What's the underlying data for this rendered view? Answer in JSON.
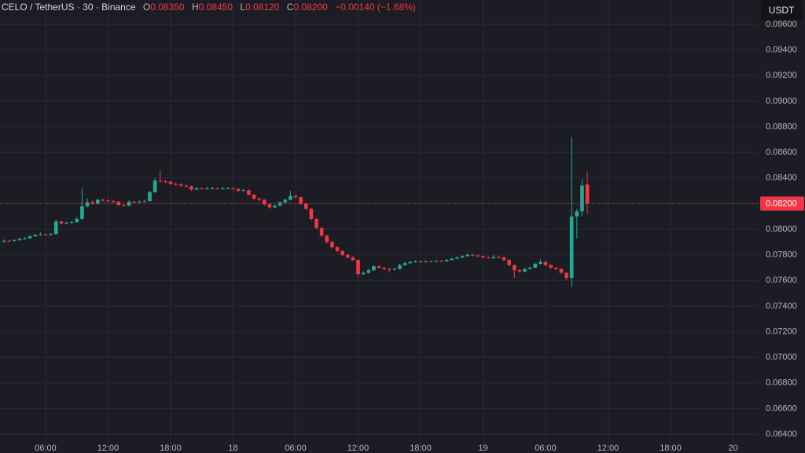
{
  "header": {
    "symbol": "CELO / TetherUS · 30 · Binance",
    "ohlc": [
      {
        "label": "O",
        "value": "0.08350"
      },
      {
        "label": "H",
        "value": "0.08450"
      },
      {
        "label": "L",
        "value": "0.08120"
      },
      {
        "label": "C",
        "value": "0.08200"
      }
    ],
    "change": "−0.00140 (−1.68%)"
  },
  "currency_button": "USDT",
  "chart_data": {
    "type": "candlestick",
    "up_color": "#22ab94",
    "down_color": "#f23645",
    "grid": true,
    "x": [
      2,
      2.5,
      3,
      3.5,
      4,
      4.5,
      5,
      5.5,
      6,
      6.5,
      7,
      7.5,
      8,
      8.5,
      9,
      9.5,
      10,
      10.5,
      11,
      11.5,
      12,
      12.5,
      13,
      13.5,
      14,
      14.5,
      15,
      15.5,
      16,
      16.5,
      17,
      17.5,
      18,
      18.5,
      19,
      19.5,
      20,
      20.5,
      21,
      21.5,
      22,
      22.5,
      23,
      23.5,
      24,
      24.5,
      25,
      25.5,
      26,
      26.5,
      27,
      27.5,
      28,
      28.5,
      29,
      29.5,
      30,
      30.5,
      31,
      31.5,
      32,
      32.5,
      33,
      33.5,
      34,
      34.5,
      35,
      35.5,
      36,
      36.5,
      37,
      37.5,
      38,
      38.5,
      39,
      39.5,
      40,
      40.5,
      41,
      41.5,
      42,
      42.5,
      43,
      43.5,
      44,
      44.5,
      45,
      45.5,
      46,
      46.5,
      47,
      47.5,
      48,
      48.5,
      49,
      49.5,
      50,
      50.5,
      51,
      51.5,
      52,
      52.5,
      53,
      53.5,
      54,
      54.5,
      55,
      55.5,
      56,
      56.5,
      57,
      57.5,
      58
    ],
    "open": [
      0.07905,
      0.0791,
      0.07908,
      0.07915,
      0.07925,
      0.0793,
      0.07945,
      0.07955,
      0.0796,
      0.07958,
      0.07962,
      0.0806,
      0.08045,
      0.0805,
      0.08055,
      0.0808,
      0.0818,
      0.0821,
      0.082,
      0.0823,
      0.08225,
      0.0822,
      0.08215,
      0.0819,
      0.08185,
      0.08215,
      0.0821,
      0.08215,
      0.0822,
      0.0829,
      0.0838,
      0.08375,
      0.0837,
      0.08355,
      0.0835,
      0.0834,
      0.08335,
      0.0831,
      0.0832,
      0.08315,
      0.0832,
      0.0832,
      0.08315,
      0.0832,
      0.0832,
      0.08315,
      0.083,
      0.08305,
      0.0827,
      0.0824,
      0.0823,
      0.08195,
      0.0817,
      0.08185,
      0.0821,
      0.0823,
      0.0826,
      0.0825,
      0.082,
      0.0816,
      0.0808,
      0.0801,
      0.0795,
      0.079,
      0.0786,
      0.0783,
      0.078,
      0.0778,
      0.0776,
      0.0765,
      0.0766,
      0.0768,
      0.0771,
      0.077,
      0.0769,
      0.07685,
      0.0769,
      0.0772,
      0.07735,
      0.07745,
      0.0775,
      0.07745,
      0.0775,
      0.07748,
      0.07752,
      0.0775,
      0.0776,
      0.0777,
      0.0778,
      0.0779,
      0.078,
      0.07795,
      0.0779,
      0.0778,
      0.07775,
      0.07785,
      0.0778,
      0.0776,
      0.0772,
      0.0768,
      0.0767,
      0.0769,
      0.077,
      0.0773,
      0.07745,
      0.0772,
      0.077,
      0.0769,
      0.0766,
      0.0762,
      0.081,
      0.0814,
      0.0835
    ],
    "high": [
      0.0792,
      0.07918,
      0.07922,
      0.07932,
      0.0794,
      0.07955,
      0.07965,
      0.07975,
      0.07968,
      0.07972,
      0.08075,
      0.08068,
      0.0806,
      0.08065,
      0.08095,
      0.0832,
      0.0824,
      0.08225,
      0.0824,
      0.08238,
      0.08232,
      0.08228,
      0.0822,
      0.08198,
      0.08225,
      0.08222,
      0.08225,
      0.0823,
      0.083,
      0.084,
      0.0846,
      0.08385,
      0.08378,
      0.08365,
      0.08358,
      0.08348,
      0.0834,
      0.0833,
      0.08328,
      0.0833,
      0.0833,
      0.08326,
      0.0833,
      0.08328,
      0.08328,
      0.0832,
      0.08315,
      0.0831,
      0.08275,
      0.08248,
      0.08235,
      0.082,
      0.08195,
      0.08218,
      0.0824,
      0.083,
      0.0827,
      0.08255,
      0.08205,
      0.08165,
      0.08085,
      0.08015,
      0.07958,
      0.0791,
      0.07868,
      0.07838,
      0.07808,
      0.0779,
      0.07765,
      0.07672,
      0.0769,
      0.0772,
      0.07718,
      0.07708,
      0.07698,
      0.077,
      0.0773,
      0.07745,
      0.07752,
      0.07758,
      0.07756,
      0.07758,
      0.07756,
      0.0776,
      0.0776,
      0.07768,
      0.07778,
      0.07788,
      0.07798,
      0.0781,
      0.07808,
      0.078,
      0.07795,
      0.07788,
      0.078,
      0.07792,
      0.07785,
      0.07765,
      0.07725,
      0.0769,
      0.07698,
      0.07708,
      0.0774,
      0.07765,
      0.0775,
      0.07725,
      0.07705,
      0.07695,
      0.07665,
      0.0872,
      0.0816,
      0.0839,
      0.0845
    ],
    "low": [
      0.07895,
      0.079,
      0.07902,
      0.0791,
      0.07918,
      0.07925,
      0.0794,
      0.0795,
      0.07948,
      0.0795,
      0.07958,
      0.08038,
      0.0804,
      0.08045,
      0.0805,
      0.08075,
      0.0817,
      0.0819,
      0.08195,
      0.08215,
      0.0821,
      0.08205,
      0.0818,
      0.08175,
      0.0818,
      0.082,
      0.08205,
      0.0821,
      0.08215,
      0.08285,
      0.08365,
      0.0836,
      0.08345,
      0.0834,
      0.0833,
      0.08325,
      0.083,
      0.08305,
      0.08308,
      0.0831,
      0.08312,
      0.08308,
      0.0831,
      0.08312,
      0.08308,
      0.08292,
      0.08295,
      0.08262,
      0.0823,
      0.08222,
      0.08185,
      0.0816,
      0.08165,
      0.0818,
      0.08205,
      0.08225,
      0.0824,
      0.0819,
      0.0815,
      0.0807,
      0.08,
      0.0794,
      0.0789,
      0.0785,
      0.0782,
      0.0779,
      0.0777,
      0.0775,
      0.0763,
      0.0764,
      0.07652,
      0.07675,
      0.0769,
      0.0768,
      0.07665,
      0.07678,
      0.07685,
      0.07715,
      0.07728,
      0.0774,
      0.07738,
      0.0774,
      0.0774,
      0.07742,
      0.07742,
      0.07745,
      0.07755,
      0.07765,
      0.07775,
      0.07785,
      0.07788,
      0.07782,
      0.07772,
      0.07768,
      0.0777,
      0.07772,
      0.07752,
      0.0771,
      0.0762,
      0.0766,
      0.07662,
      0.07685,
      0.07695,
      0.07725,
      0.07712,
      0.07692,
      0.0768,
      0.0765,
      0.076,
      0.0755,
      0.0793,
      0.081,
      0.0812
    ],
    "close": [
      0.0791,
      0.07908,
      0.07915,
      0.07925,
      0.0793,
      0.07945,
      0.07955,
      0.0796,
      0.07958,
      0.07962,
      0.0806,
      0.08045,
      0.0805,
      0.08055,
      0.0808,
      0.0818,
      0.0821,
      0.082,
      0.0823,
      0.08225,
      0.0822,
      0.08215,
      0.0819,
      0.08185,
      0.08215,
      0.0821,
      0.08215,
      0.0822,
      0.0829,
      0.0838,
      0.08375,
      0.0837,
      0.08355,
      0.0835,
      0.0834,
      0.08335,
      0.0831,
      0.0832,
      0.08315,
      0.0832,
      0.0832,
      0.08315,
      0.0832,
      0.0832,
      0.08315,
      0.083,
      0.08305,
      0.0827,
      0.0824,
      0.0823,
      0.08195,
      0.0817,
      0.08185,
      0.0821,
      0.0823,
      0.0826,
      0.0825,
      0.082,
      0.0816,
      0.0808,
      0.0801,
      0.0795,
      0.079,
      0.0786,
      0.0783,
      0.078,
      0.0778,
      0.0776,
      0.0765,
      0.0766,
      0.0768,
      0.0771,
      0.077,
      0.0769,
      0.07685,
      0.0769,
      0.0772,
      0.07735,
      0.07745,
      0.0775,
      0.07745,
      0.0775,
      0.07748,
      0.07752,
      0.0775,
      0.0776,
      0.0777,
      0.0778,
      0.0779,
      0.078,
      0.07795,
      0.0779,
      0.0778,
      0.07775,
      0.07785,
      0.0778,
      0.0776,
      0.0772,
      0.0768,
      0.0767,
      0.0769,
      0.077,
      0.0773,
      0.07745,
      0.0772,
      0.077,
      0.0769,
      0.0766,
      0.0762,
      0.081,
      0.0814,
      0.0834,
      0.082
    ],
    "last_price": {
      "value": 0.082,
      "label": "0.08200"
    },
    "xlim": [
      1.62,
      74.45
    ],
    "xticks": [
      {
        "value": 6,
        "label": "06:00"
      },
      {
        "value": 12,
        "label": "12:00"
      },
      {
        "value": 18,
        "label": "18:00"
      },
      {
        "value": 24,
        "label": "18"
      },
      {
        "value": 30,
        "label": "06:00"
      },
      {
        "value": 36,
        "label": "12:00"
      },
      {
        "value": 42,
        "label": "18:00"
      },
      {
        "value": 48,
        "label": "19"
      },
      {
        "value": 54,
        "label": "06:00"
      },
      {
        "value": 60,
        "label": "12:00"
      },
      {
        "value": 66,
        "label": "18:00"
      },
      {
        "value": 72,
        "label": "20"
      }
    ],
    "ylim": [
      0.06357,
      0.0979
    ],
    "yticks": [
      {
        "value": 0.064,
        "label": "0.06400"
      },
      {
        "value": 0.066,
        "label": "0.06600"
      },
      {
        "value": 0.068,
        "label": "0.06800"
      },
      {
        "value": 0.07,
        "label": "0.07000"
      },
      {
        "value": 0.072,
        "label": "0.07200"
      },
      {
        "value": 0.074,
        "label": "0.07400"
      },
      {
        "value": 0.076,
        "label": "0.07600"
      },
      {
        "value": 0.078,
        "label": "0.07800"
      },
      {
        "value": 0.08,
        "label": "0.08000"
      },
      {
        "value": 0.082,
        "label": "0.08200"
      },
      {
        "value": 0.084,
        "label": "0.08400"
      },
      {
        "value": 0.086,
        "label": "0.08600"
      },
      {
        "value": 0.088,
        "label": "0.08800"
      },
      {
        "value": 0.09,
        "label": "0.09000"
      },
      {
        "value": 0.092,
        "label": "0.09200"
      },
      {
        "value": 0.094,
        "label": "0.09400"
      },
      {
        "value": 0.096,
        "label": "0.09600"
      }
    ]
  }
}
